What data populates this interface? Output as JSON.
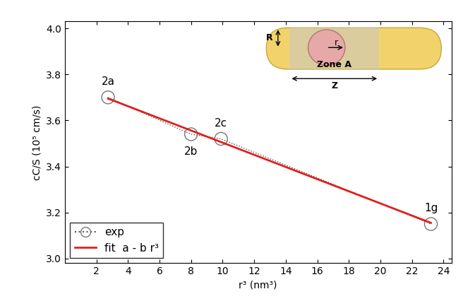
{
  "chart_data": {
    "type": "scatter",
    "x_label": "r³ (nm³)",
    "y_label": "cC/S (10⁵ cm/s)",
    "xlim": [
      0,
      24.5
    ],
    "xticks": [
      2,
      4,
      6,
      8,
      10,
      12,
      14,
      16,
      18,
      20,
      22,
      24
    ],
    "ylim": [
      2.98,
      4.03
    ],
    "yticks": [
      3.0,
      3.2,
      3.4,
      3.6,
      3.8,
      4.0
    ],
    "legend": "lower left",
    "point_labels": [
      "2a",
      "2b",
      "2c",
      "1g"
    ],
    "annotations": [
      "R",
      "r",
      "Zone A",
      "Z"
    ],
    "series": [
      {
        "name": "exp",
        "type": "line",
        "marker": "o",
        "line_style": "dotted",
        "color": "#555555",
        "x": [
          2.74,
          8.0,
          9.9,
          23.2
        ],
        "values": [
          3.7,
          3.54,
          3.52,
          3.15
        ]
      },
      {
        "name": "fit  a - b r³",
        "type": "line",
        "line_style": "solid",
        "color": "#e0201b",
        "x": [
          2.74,
          23.2
        ],
        "values": [
          3.695,
          3.155
        ]
      }
    ]
  }
}
